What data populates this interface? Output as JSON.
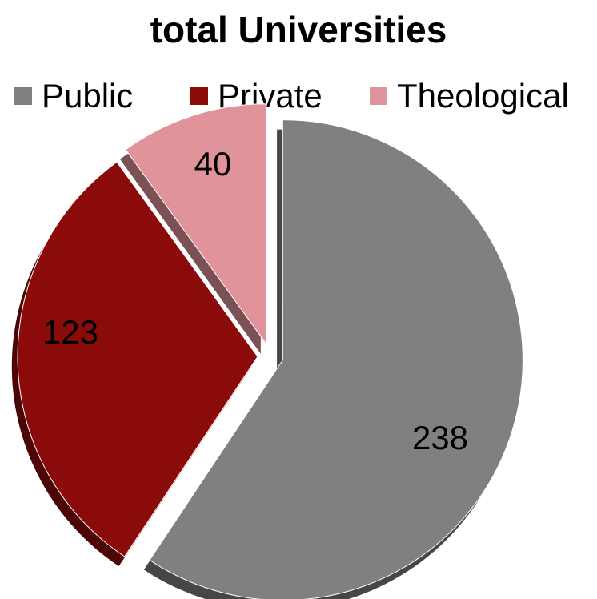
{
  "chart_data": {
    "type": "pie",
    "title": "total Universities",
    "categories": [
      "Public",
      "Private",
      "Theological"
    ],
    "values": [
      238,
      123,
      40
    ],
    "colors": [
      "#808080",
      "#8b0a0a",
      "#e0939a"
    ],
    "legend_position": "top",
    "exploded": true,
    "data_labels": true
  }
}
